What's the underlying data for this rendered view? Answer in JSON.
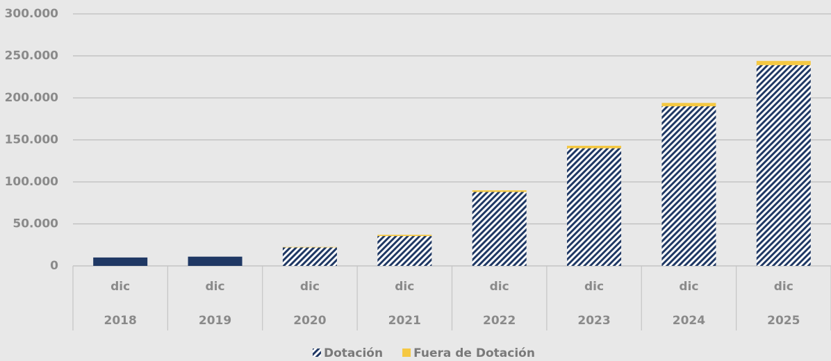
{
  "chart_data": {
    "type": "stacked_bar",
    "categories": [
      "2018",
      "2019",
      "2020",
      "2021",
      "2022",
      "2023",
      "2024",
      "2025"
    ],
    "months": [
      "dic",
      "dic",
      "dic",
      "dic",
      "dic",
      "dic",
      "dic",
      "dic"
    ],
    "series": [
      {
        "name": "Dotación",
        "color": "#1f3864",
        "values": [
          10000,
          11000,
          22000,
          35500,
          88000,
          140000,
          190000,
          239000
        ],
        "fill_styles": [
          "solid",
          "solid",
          "hatch",
          "hatch",
          "hatch",
          "hatch",
          "hatch",
          "hatch"
        ]
      },
      {
        "name": "Fuera de Dotación",
        "color": "#f5c842",
        "values": [
          0,
          0,
          500,
          1500,
          2000,
          3000,
          4000,
          5000
        ]
      }
    ],
    "ylim": [
      0,
      300000
    ],
    "yticks": [
      0,
      {
        "value": 50000,
        "label": "50.000"
      },
      {
        "value": 100000,
        "label": "100.000"
      },
      {
        "value": 150000,
        "label": "150.000"
      },
      {
        "value": 200000,
        "label": "200.000"
      },
      {
        "value": 250000,
        "label": "250.000"
      },
      {
        "value": 300000,
        "label": "300.000"
      }
    ],
    "grid": true,
    "legend": "bottom"
  }
}
